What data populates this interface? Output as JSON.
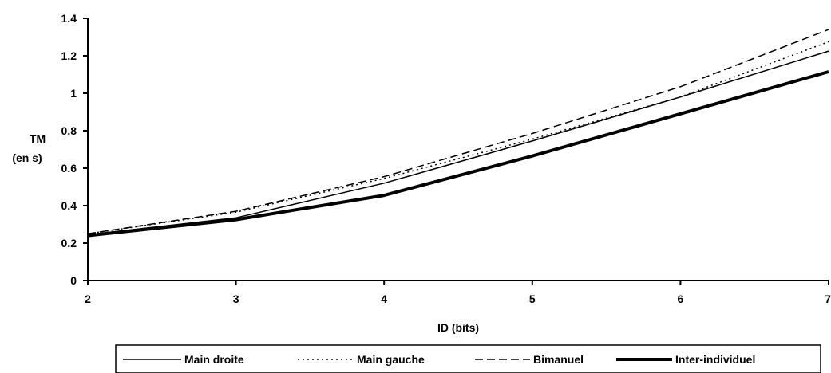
{
  "chart_data": {
    "type": "line",
    "x": [
      2,
      3,
      4,
      5,
      6,
      7
    ],
    "xlabel": "ID (bits)",
    "ylabel_line1": "TM",
    "ylabel_line2": "(en s)",
    "xlim": [
      2,
      7
    ],
    "ylim": [
      0,
      1.4
    ],
    "x_ticks": [
      "2",
      "3",
      "4",
      "5",
      "6",
      "7"
    ],
    "y_ticks": [
      "0",
      "0.2",
      "0.4",
      "0.6",
      "0.8",
      "1",
      "1.2",
      "1.4"
    ],
    "grid": false,
    "legend_position": "bottom",
    "series": [
      {
        "name": "Main droite",
        "values": [
          0.245,
          0.335,
          0.52,
          0.745,
          0.98,
          1.225
        ],
        "color": "#000000",
        "style": "solid"
      },
      {
        "name": "Main gauche",
        "values": [
          0.25,
          0.365,
          0.545,
          0.755,
          0.98,
          1.275
        ],
        "color": "#000000",
        "style": "dotted"
      },
      {
        "name": "Bimanuel",
        "values": [
          0.25,
          0.37,
          0.555,
          0.785,
          1.035,
          1.34
        ],
        "color": "#000000",
        "style": "dashed"
      },
      {
        "name": "Inter-individuel",
        "values": [
          0.24,
          0.325,
          0.455,
          0.665,
          0.89,
          1.115
        ],
        "color": "#000000",
        "style": "thick"
      }
    ]
  }
}
